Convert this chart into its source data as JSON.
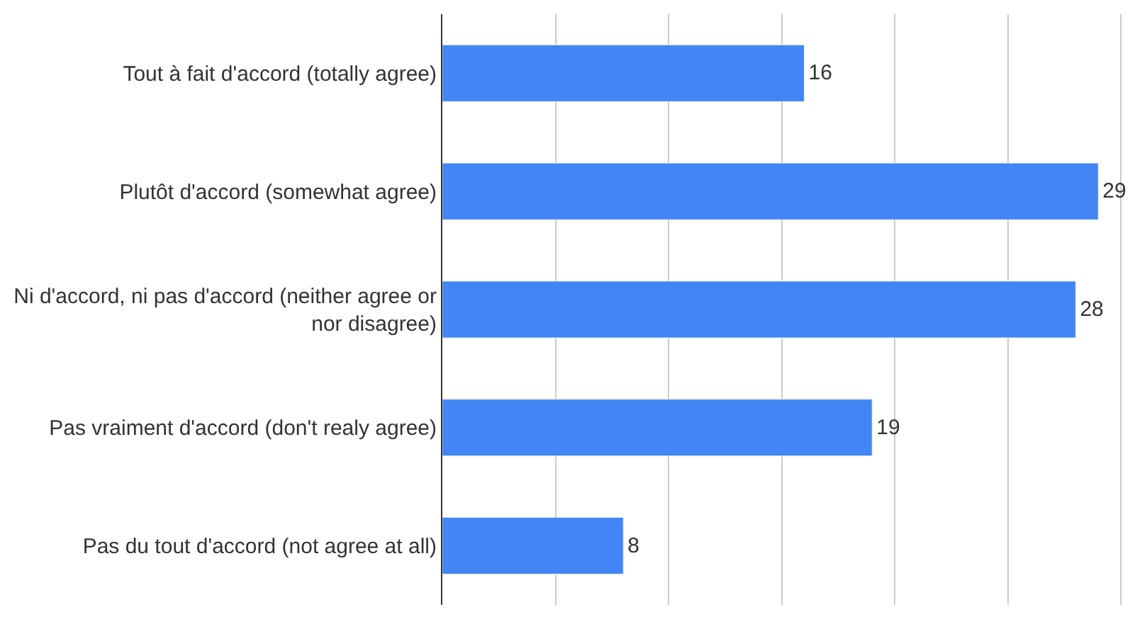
{
  "chart_data": {
    "type": "bar",
    "orientation": "horizontal",
    "categories": [
      "Tout à fait d'accord (totally agree)",
      "Plutôt d'accord (somewhat agree)",
      "Ni d'accord, ni pas d'accord (neither agree or nor disagree)",
      "Pas vraiment d'accord (don't realy agree)",
      "Pas du tout d'accord (not agree at all)"
    ],
    "values": [
      16,
      29,
      28,
      19,
      8
    ],
    "color": "#4285f4",
    "data_labels": true,
    "grid": "x",
    "tick_labels": "y",
    "legend": false
  }
}
